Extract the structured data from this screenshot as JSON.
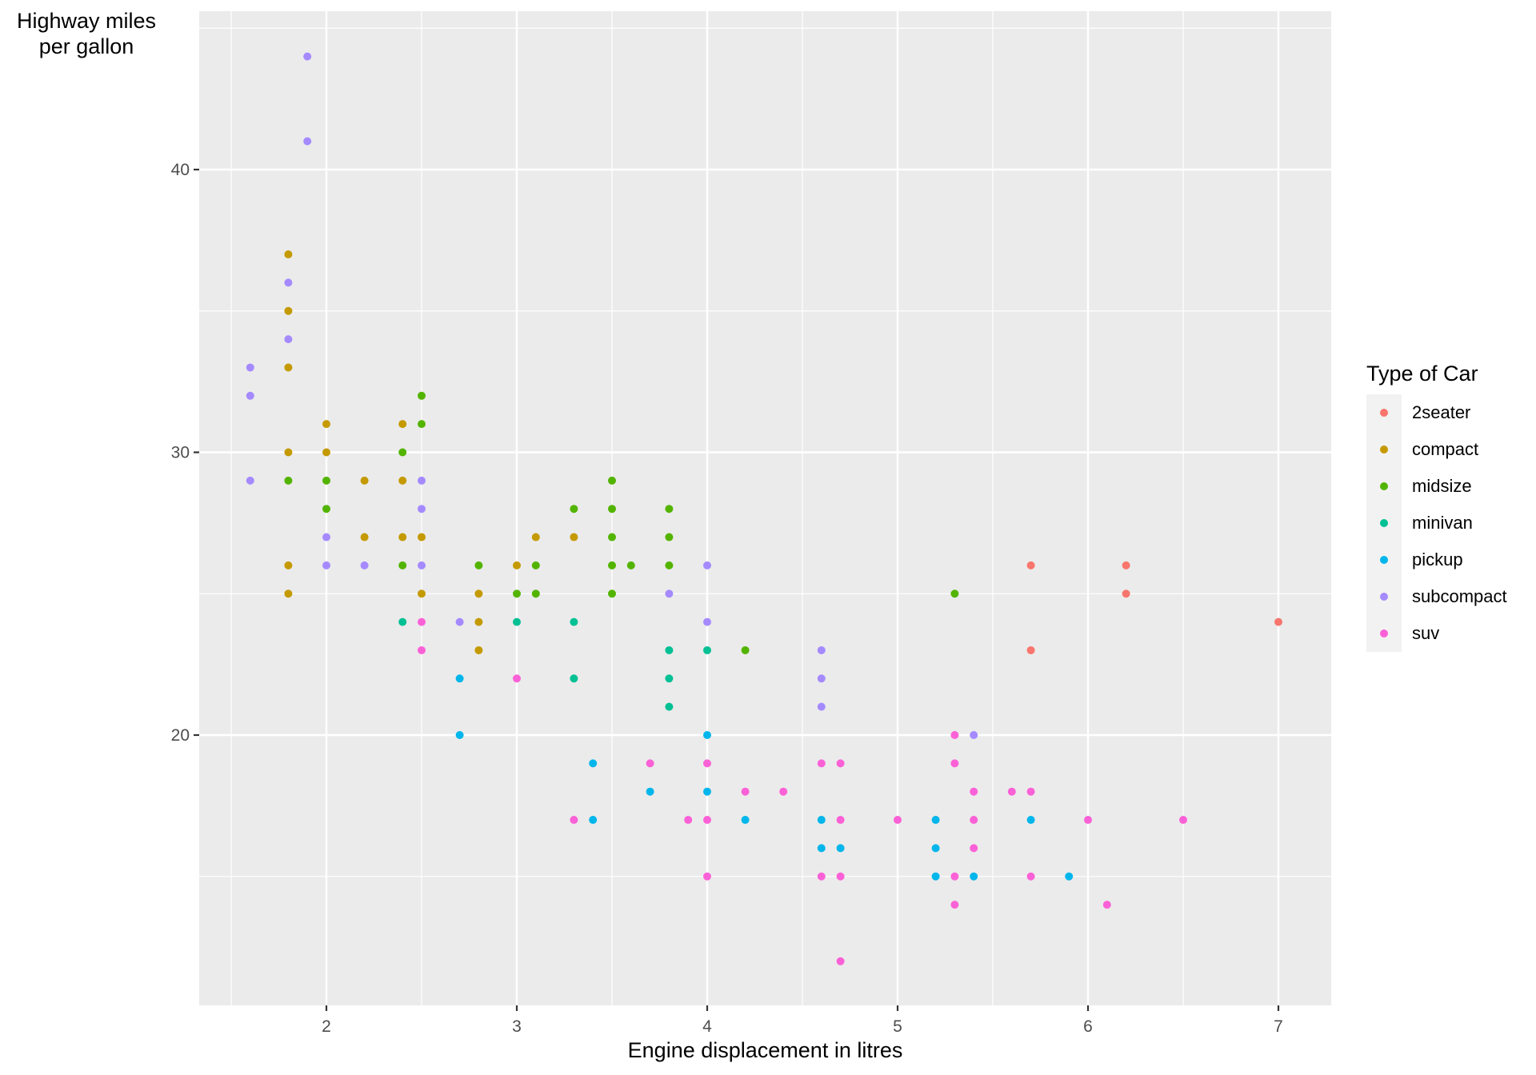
{
  "chart_data": {
    "type": "scatter",
    "title": "",
    "xlabel": "Engine displacement in litres",
    "ylabel": "Highway miles\nper gallon",
    "xlim": [
      1.33,
      7.27
    ],
    "ylim": [
      10.4,
      45.6
    ],
    "x_ticks": [
      2,
      3,
      4,
      5,
      6,
      7
    ],
    "y_ticks": [
      20,
      30,
      40
    ],
    "x_minor": [
      1.5,
      2.5,
      3.5,
      4.5,
      5.5,
      6.5
    ],
    "y_minor": [
      15,
      25,
      35,
      45
    ],
    "grid": true,
    "legend_title": "Type of Car",
    "legend_position": "right",
    "series": [
      {
        "name": "2seater",
        "color": "#F8766D",
        "points": [
          [
            5.7,
            26
          ],
          [
            5.7,
            23
          ],
          [
            6.2,
            26
          ],
          [
            6.2,
            25
          ],
          [
            7.0,
            24
          ]
        ]
      },
      {
        "name": "compact",
        "color": "#C49A00",
        "points": [
          [
            1.8,
            37
          ],
          [
            1.8,
            35
          ],
          [
            1.8,
            33
          ],
          [
            1.8,
            30
          ],
          [
            1.8,
            26
          ],
          [
            1.8,
            25
          ],
          [
            2.0,
            31
          ],
          [
            2.0,
            30
          ],
          [
            2.2,
            29
          ],
          [
            2.2,
            27
          ],
          [
            2.4,
            31
          ],
          [
            2.4,
            29
          ],
          [
            2.4,
            27
          ],
          [
            2.5,
            27
          ],
          [
            2.5,
            25
          ],
          [
            2.8,
            25
          ],
          [
            2.8,
            24
          ],
          [
            2.8,
            23
          ],
          [
            3.0,
            26
          ],
          [
            3.1,
            27
          ],
          [
            3.3,
            27
          ]
        ]
      },
      {
        "name": "midsize",
        "color": "#53B400",
        "points": [
          [
            1.8,
            29
          ],
          [
            2.0,
            29
          ],
          [
            2.0,
            28
          ],
          [
            2.4,
            30
          ],
          [
            2.4,
            26
          ],
          [
            2.5,
            32
          ],
          [
            2.5,
            31
          ],
          [
            2.8,
            26
          ],
          [
            3.0,
            25
          ],
          [
            3.1,
            26
          ],
          [
            3.1,
            25
          ],
          [
            3.3,
            28
          ],
          [
            3.5,
            29
          ],
          [
            3.5,
            28
          ],
          [
            3.5,
            27
          ],
          [
            3.5,
            26
          ],
          [
            3.5,
            25
          ],
          [
            3.6,
            26
          ],
          [
            3.8,
            28
          ],
          [
            3.8,
            27
          ],
          [
            3.8,
            26
          ],
          [
            4.2,
            23
          ],
          [
            5.3,
            25
          ]
        ]
      },
      {
        "name": "minivan",
        "color": "#00C094",
        "points": [
          [
            2.4,
            24
          ],
          [
            3.0,
            24
          ],
          [
            3.3,
            24
          ],
          [
            3.3,
            22
          ],
          [
            3.8,
            23
          ],
          [
            3.8,
            22
          ],
          [
            3.8,
            21
          ],
          [
            4.0,
            23
          ]
        ]
      },
      {
        "name": "pickup",
        "color": "#00B6EB",
        "points": [
          [
            2.7,
            22
          ],
          [
            2.7,
            20
          ],
          [
            3.4,
            19
          ],
          [
            3.4,
            17
          ],
          [
            3.7,
            18
          ],
          [
            4.0,
            20
          ],
          [
            4.0,
            18
          ],
          [
            4.2,
            17
          ],
          [
            4.6,
            17
          ],
          [
            4.6,
            16
          ],
          [
            4.7,
            16
          ],
          [
            5.2,
            17
          ],
          [
            5.2,
            16
          ],
          [
            5.2,
            15
          ],
          [
            5.4,
            15
          ],
          [
            5.7,
            17
          ],
          [
            5.9,
            15
          ]
        ]
      },
      {
        "name": "subcompact",
        "color": "#A58AFF",
        "points": [
          [
            1.9,
            44
          ],
          [
            1.9,
            41
          ],
          [
            1.8,
            36
          ],
          [
            1.8,
            34
          ],
          [
            1.6,
            33
          ],
          [
            1.6,
            32
          ],
          [
            1.6,
            29
          ],
          [
            2.0,
            27
          ],
          [
            2.0,
            26
          ],
          [
            2.2,
            26
          ],
          [
            2.5,
            29
          ],
          [
            2.5,
            28
          ],
          [
            2.5,
            26
          ],
          [
            2.7,
            24
          ],
          [
            3.8,
            25
          ],
          [
            4.0,
            26
          ],
          [
            4.0,
            24
          ],
          [
            4.6,
            23
          ],
          [
            4.6,
            22
          ],
          [
            4.6,
            21
          ],
          [
            5.4,
            20
          ]
        ]
      },
      {
        "name": "suv",
        "color": "#FB61D7",
        "points": [
          [
            2.5,
            24
          ],
          [
            2.5,
            23
          ],
          [
            3.0,
            22
          ],
          [
            3.3,
            17
          ],
          [
            3.7,
            19
          ],
          [
            3.9,
            17
          ],
          [
            4.0,
            19
          ],
          [
            4.0,
            17
          ],
          [
            4.0,
            15
          ],
          [
            4.2,
            18
          ],
          [
            4.4,
            18
          ],
          [
            4.6,
            19
          ],
          [
            4.6,
            15
          ],
          [
            4.7,
            19
          ],
          [
            4.7,
            17
          ],
          [
            4.7,
            15
          ],
          [
            4.7,
            12
          ],
          [
            5.0,
            17
          ],
          [
            5.3,
            20
          ],
          [
            5.3,
            19
          ],
          [
            5.3,
            15
          ],
          [
            5.3,
            14
          ],
          [
            5.4,
            18
          ],
          [
            5.4,
            17
          ],
          [
            5.4,
            16
          ],
          [
            5.6,
            18
          ],
          [
            5.7,
            18
          ],
          [
            5.7,
            15
          ],
          [
            6.0,
            17
          ],
          [
            6.1,
            14
          ],
          [
            6.5,
            17
          ]
        ]
      }
    ]
  },
  "style": {
    "panel_bg": "#EBEBEB",
    "grid_major": "#FFFFFF",
    "tick_color": "#333333",
    "legend_key_bg": "#F2F2F2"
  }
}
